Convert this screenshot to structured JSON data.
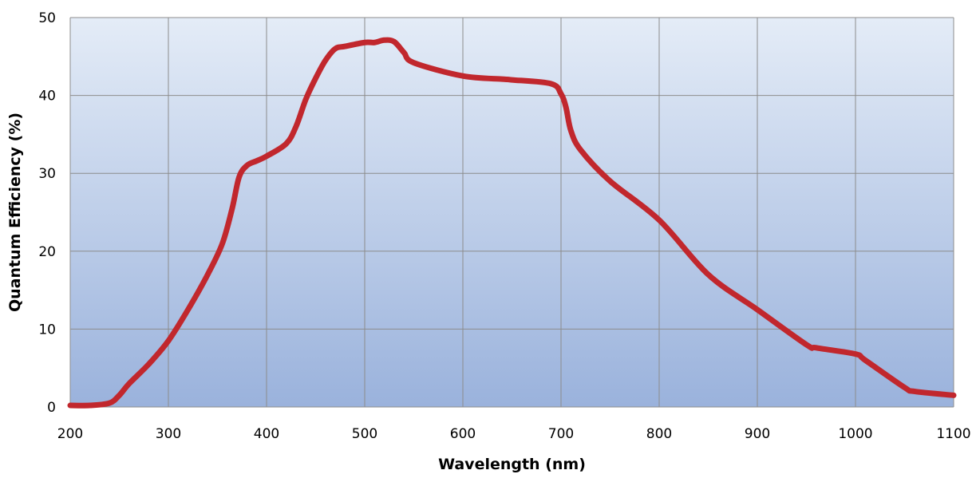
{
  "chart_data": {
    "type": "line",
    "title": "",
    "xlabel": "Wavelength (nm)",
    "ylabel": "Quantum Efficiency (%)",
    "xlim": [
      200,
      1100
    ],
    "ylim": [
      0,
      50
    ],
    "xticks": [
      200,
      300,
      400,
      500,
      600,
      700,
      800,
      900,
      1000,
      1100
    ],
    "yticks": [
      0,
      10,
      20,
      30,
      40,
      50
    ],
    "grid": true,
    "legend": "none",
    "background_gradient": [
      "#e4ecf7",
      "#9ab2dc"
    ],
    "series": [
      {
        "color": "#c1272d",
        "x": [
          200,
          220,
          240,
          250,
          260,
          280,
          300,
          320,
          340,
          355,
          365,
          372,
          380,
          390,
          400,
          420,
          430,
          440,
          450,
          460,
          470,
          480,
          500,
          510,
          520,
          530,
          540,
          550,
          600,
          640,
          650,
          690,
          700,
          705,
          710,
          720,
          750,
          800,
          850,
          900,
          950,
          960,
          1000,
          1010,
          1050,
          1060,
          1100
        ],
        "y": [
          0.2,
          0.2,
          0.5,
          1.5,
          3,
          5.5,
          8.5,
          12.5,
          17,
          21,
          25.5,
          29.5,
          31,
          31.6,
          32.2,
          33.8,
          36,
          39.5,
          42.2,
          44.5,
          46,
          46.3,
          46.8,
          46.8,
          47.1,
          46.9,
          45.5,
          44.2,
          42.5,
          42.1,
          42,
          41.5,
          40.2,
          38.5,
          35.5,
          33,
          29,
          24,
          17,
          12.5,
          8,
          7.6,
          6.8,
          6,
          2.5,
          2,
          1.5
        ]
      }
    ]
  }
}
